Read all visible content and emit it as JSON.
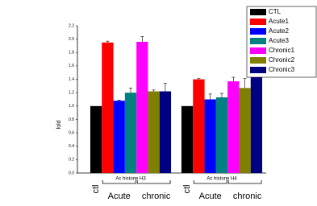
{
  "chart_data": {
    "type": "bar",
    "y_label": "fold",
    "categories": [
      "Ac histone H3",
      "Ac histone H4"
    ],
    "series": [
      {
        "name": "CTL",
        "color": "#000000",
        "values": [
          1.0,
          1.0
        ],
        "errors": [
          0,
          0
        ]
      },
      {
        "name": "Acute1",
        "color": "#ff0000",
        "values": [
          1.95,
          1.4
        ],
        "errors": [
          0.02,
          0.01
        ]
      },
      {
        "name": "Acute2",
        "color": "#0000ff",
        "values": [
          1.08,
          1.1
        ],
        "errors": [
          0.01,
          0.08
        ]
      },
      {
        "name": "Acute3",
        "color": "#008080",
        "values": [
          1.2,
          1.13
        ],
        "errors": [
          0.07,
          0.06
        ]
      },
      {
        "name": "Chronic1",
        "color": "#ff00ff",
        "values": [
          1.96,
          1.37
        ],
        "errors": [
          0.08,
          0.06
        ]
      },
      {
        "name": "Chronic2",
        "color": "#808000",
        "values": [
          1.22,
          1.27
        ],
        "errors": [
          0.02,
          0.14
        ]
      },
      {
        "name": "Chronic3",
        "color": "#000080",
        "values": [
          1.22,
          1.52
        ],
        "errors": [
          0.12,
          0.05
        ]
      }
    ],
    "group_annotations": [
      [
        "ctl",
        "Acute",
        "chronic"
      ],
      [
        "ctl",
        "Acute",
        "chronic"
      ]
    ],
    "ylim": [
      0,
      2.2
    ],
    "yticks": [
      {
        "value": 0,
        "label": "0.0"
      },
      0.2,
      0.4,
      0.6,
      0.8,
      {
        "value": 1,
        "label": "1.0"
      },
      1.2,
      1.4,
      1.6,
      1.8,
      {
        "value": 2,
        "label": "2.0"
      },
      2.2
    ]
  }
}
